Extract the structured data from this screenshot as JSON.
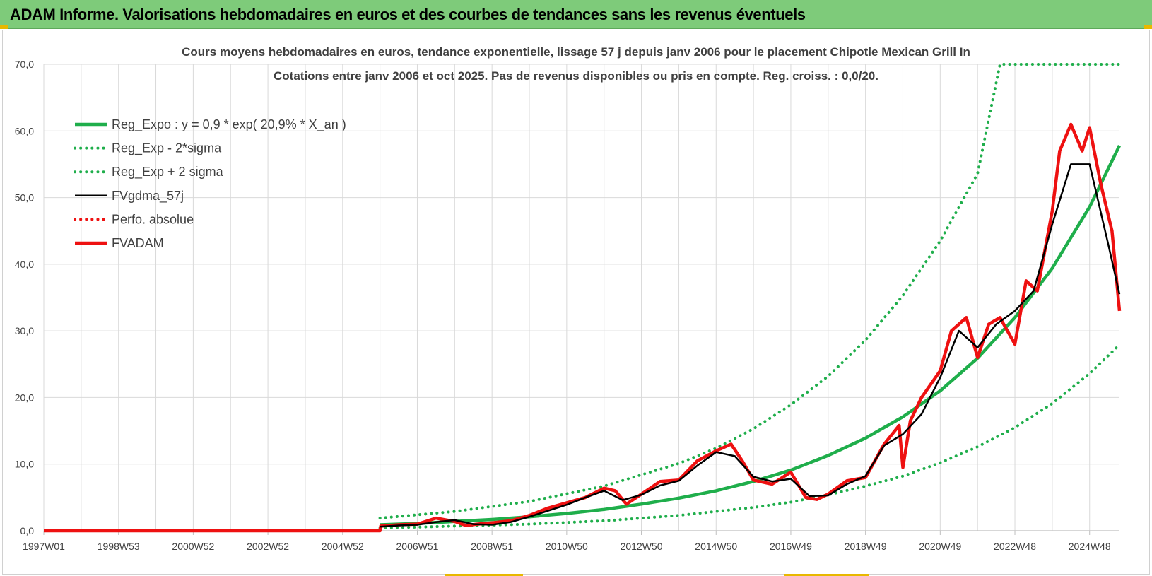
{
  "banner": {
    "title": "ADAM Informe. Valorisations hebdomadaires en euros et des courbes de tendances sans les revenus éventuels"
  },
  "colors": {
    "banner": "#7ecb7a",
    "trend": "#1fae4b",
    "smooth": "#000000",
    "price": "#ee1111",
    "grid": "#d9d9d9"
  },
  "chart_data": {
    "type": "line",
    "title": "Cours moyens hebdomadaires en euros, tendance exponentielle, lissage 57 j depuis janv 2006 pour le placement Chipotle Mexican Grill In",
    "subtitle": "Cotations entre janv 2006 et oct 2025. Pas de revenus disponibles ou pris en compte. Reg. croiss. : 0,0/20.",
    "xlabel": "",
    "ylabel": "",
    "xlim": [
      1997.0,
      2025.8
    ],
    "ylim": [
      0,
      70
    ],
    "grid": true,
    "legend_position": "top-left",
    "y_ticks": [
      "0,0",
      "10,0",
      "20,0",
      "30,0",
      "40,0",
      "50,0",
      "60,0",
      "70,0"
    ],
    "x_ticks": [
      {
        "label": "1997W01",
        "x": 1997.0
      },
      {
        "label": "1998W53",
        "x": 1999.0
      },
      {
        "label": "2000W52",
        "x": 2001.0
      },
      {
        "label": "2002W52",
        "x": 2003.0
      },
      {
        "label": "2004W52",
        "x": 2005.0
      },
      {
        "label": "2006W51",
        "x": 2007.0
      },
      {
        "label": "2008W51",
        "x": 2009.0
      },
      {
        "label": "2010W50",
        "x": 2011.0
      },
      {
        "label": "2012W50",
        "x": 2013.0
      },
      {
        "label": "2014W50",
        "x": 2015.0
      },
      {
        "label": "2016W49",
        "x": 2017.0
      },
      {
        "label": "2018W49",
        "x": 2019.0
      },
      {
        "label": "2020W49",
        "x": 2021.0
      },
      {
        "label": "2022W48",
        "x": 2023.0
      },
      {
        "label": "2024W48",
        "x": 2025.0
      }
    ],
    "series": [
      {
        "name": "Reg_Expo : y = 0,9 * exp( 20,9% *  X_an )",
        "style": "solid-thick",
        "color": "#1fae4b",
        "x": [
          2006.0,
          2007.0,
          2008.0,
          2009.0,
          2010.0,
          2011.0,
          2012.0,
          2013.0,
          2014.0,
          2015.0,
          2016.0,
          2017.0,
          2018.0,
          2019.0,
          2020.0,
          2021.0,
          2022.0,
          2023.0,
          2024.0,
          2025.0,
          2025.8
        ],
        "values": [
          0.9,
          1.1,
          1.4,
          1.7,
          2.1,
          2.6,
          3.2,
          4.0,
          4.9,
          6.0,
          7.4,
          9.1,
          11.3,
          13.9,
          17.1,
          21.0,
          25.9,
          32.0,
          39.4,
          48.6,
          57.8
        ]
      },
      {
        "name": "Reg_Exp - 2*sigma",
        "style": "dotted",
        "color": "#1fae4b",
        "x": [
          2006.0,
          2008.0,
          2010.0,
          2012.0,
          2014.0,
          2016.0,
          2017.0,
          2018.0,
          2019.0,
          2020.0,
          2021.0,
          2022.0,
          2023.0,
          2024.0,
          2025.0,
          2025.8
        ],
        "values": [
          0.4,
          0.7,
          1.0,
          1.5,
          2.3,
          3.5,
          4.3,
          5.4,
          6.7,
          8.2,
          10.2,
          12.6,
          15.5,
          19.1,
          23.6,
          27.9
        ]
      },
      {
        "name": "Reg_Exp + 2 sigma",
        "style": "dotted",
        "color": "#1fae4b",
        "x": [
          2006.0,
          2008.0,
          2010.0,
          2012.0,
          2014.0,
          2015.0,
          2016.0,
          2017.0,
          2018.0,
          2019.0,
          2020.0,
          2021.0,
          2022.0,
          2022.6,
          2023.0,
          2024.0,
          2025.0,
          2025.8
        ],
        "values": [
          1.9,
          2.9,
          4.4,
          6.7,
          10.1,
          12.4,
          15.3,
          18.9,
          23.2,
          28.6,
          35.3,
          43.5,
          53.6,
          70.0,
          70.0,
          70.0,
          70.0,
          70.0
        ]
      },
      {
        "name": "FVgdma_57j",
        "style": "solid",
        "color": "#000000",
        "x": [
          2006.0,
          2006.5,
          2007.0,
          2007.5,
          2008.0,
          2008.5,
          2009.0,
          2009.5,
          2010.0,
          2010.5,
          2011.0,
          2011.5,
          2012.0,
          2012.5,
          2013.0,
          2013.5,
          2014.0,
          2014.5,
          2015.0,
          2015.5,
          2016.0,
          2016.5,
          2017.0,
          2017.5,
          2018.0,
          2018.5,
          2019.0,
          2019.5,
          2020.0,
          2020.5,
          2021.0,
          2021.5,
          2022.0,
          2022.5,
          2023.0,
          2023.5,
          2024.0,
          2024.5,
          2025.0,
          2025.5,
          2025.8
        ],
        "values": [
          0.6,
          0.8,
          0.9,
          1.3,
          1.6,
          1.0,
          0.9,
          1.3,
          2.1,
          3.0,
          3.9,
          5.0,
          6.0,
          4.6,
          5.4,
          6.8,
          7.5,
          9.8,
          11.8,
          11.2,
          8.1,
          7.4,
          7.8,
          5.2,
          5.3,
          7.0,
          8.2,
          12.8,
          14.5,
          17.5,
          23.0,
          30.0,
          27.5,
          31.0,
          33.0,
          36.0,
          46.0,
          55.0,
          55.0,
          43.0,
          35.5
        ]
      },
      {
        "name": "Perfo. absolue",
        "style": "dotted",
        "color": "#ee1111",
        "x": [],
        "values": []
      },
      {
        "name": "FVADAM",
        "style": "solid-thick",
        "color": "#ee1111",
        "x": [
          1997.0,
          2006.0,
          2006.02,
          2006.5,
          2007.0,
          2007.5,
          2008.0,
          2008.3,
          2008.6,
          2009.0,
          2009.5,
          2010.0,
          2010.5,
          2011.0,
          2011.5,
          2012.0,
          2012.3,
          2012.6,
          2013.0,
          2013.5,
          2014.0,
          2014.5,
          2015.0,
          2015.4,
          2015.7,
          2016.0,
          2016.5,
          2017.0,
          2017.4,
          2017.7,
          2018.0,
          2018.5,
          2019.0,
          2019.5,
          2019.9,
          2020.0,
          2020.2,
          2020.5,
          2021.0,
          2021.3,
          2021.7,
          2022.0,
          2022.3,
          2022.6,
          2023.0,
          2023.3,
          2023.6,
          2024.0,
          2024.2,
          2024.5,
          2024.8,
          2025.0,
          2025.3,
          2025.6,
          2025.8
        ],
        "values": [
          0.0,
          0.0,
          0.7,
          0.9,
          1.0,
          1.9,
          1.4,
          0.8,
          1.0,
          1.2,
          1.5,
          2.3,
          3.4,
          4.2,
          5.0,
          6.4,
          6.0,
          4.0,
          5.5,
          7.4,
          7.6,
          10.5,
          12.0,
          13.0,
          10.5,
          7.6,
          7.0,
          8.8,
          5.0,
          4.7,
          5.5,
          7.5,
          8.0,
          13.0,
          15.8,
          9.5,
          16.5,
          20.0,
          24.0,
          30.0,
          32.0,
          26.0,
          31.0,
          32.0,
          28.0,
          37.5,
          36.0,
          48.0,
          57.0,
          61.0,
          57.0,
          60.5,
          52.0,
          45.0,
          33.0
        ]
      }
    ]
  }
}
